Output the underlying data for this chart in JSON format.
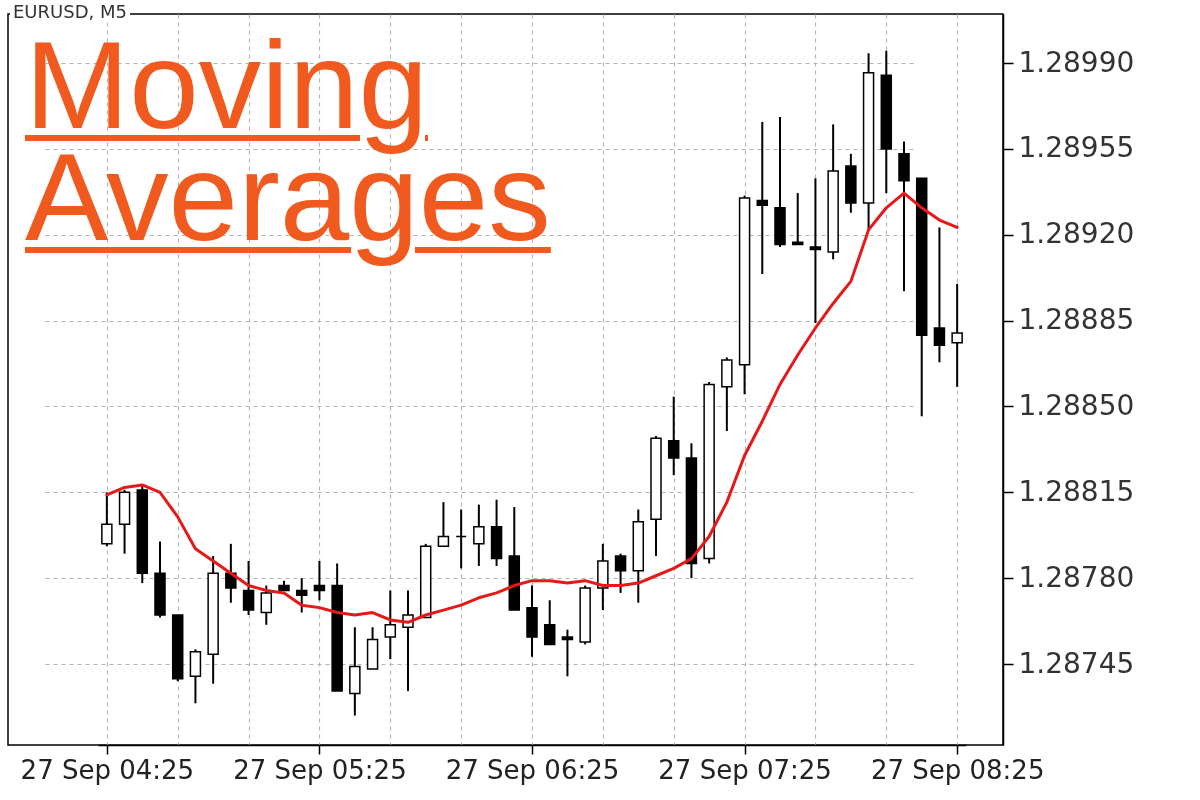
{
  "chart_data": {
    "type": "candlestick",
    "title": "Moving Averages",
    "subtitle": "EURUSD, M5",
    "categories": [
      "27 Sep 04:25",
      null,
      null,
      null,
      null,
      null,
      null,
      null,
      null,
      null,
      null,
      null,
      "27 Sep 05:25",
      null,
      null,
      null,
      null,
      null,
      null,
      null,
      null,
      null,
      null,
      null,
      "27 Sep 06:25",
      null,
      null,
      null,
      null,
      null,
      null,
      null,
      null,
      null,
      null,
      null,
      "27 Sep 07:25",
      null,
      null,
      null,
      null,
      null,
      null,
      null,
      null,
      null,
      null,
      null,
      "27 Sep 08:25"
    ],
    "ohlc": [
      [
        1.28794,
        1.28815,
        1.28793,
        1.28802
      ],
      [
        1.28802,
        1.28816,
        1.2879,
        1.28815
      ],
      [
        1.28816,
        1.28818,
        1.28778,
        1.28782
      ],
      [
        1.28782,
        1.28795,
        1.28764,
        1.28765
      ],
      [
        1.28765,
        1.28765,
        1.28738,
        1.28739
      ],
      [
        1.2874,
        1.28751,
        1.28729,
        1.2875
      ],
      [
        1.28749,
        1.28789,
        1.28737,
        1.28782
      ],
      [
        1.28782,
        1.28794,
        1.2877,
        1.28776
      ],
      [
        1.28775,
        1.28787,
        1.28765,
        1.28767
      ],
      [
        1.28766,
        1.28777,
        1.28761,
        1.28774
      ],
      [
        1.28777,
        1.28779,
        1.28775,
        1.28775
      ],
      [
        1.28775,
        1.2878,
        1.28766,
        1.28773
      ],
      [
        1.28777,
        1.28787,
        1.28771,
        1.28775
      ],
      [
        1.28777,
        1.28786,
        1.28734,
        1.28734
      ],
      [
        1.28733,
        1.2876,
        1.28724,
        1.28744
      ],
      [
        1.28743,
        1.2876,
        1.28743,
        1.28755
      ],
      [
        1.28756,
        1.28775,
        1.28747,
        1.28761
      ],
      [
        1.2876,
        1.28775,
        1.28734,
        1.28765
      ],
      [
        1.28764,
        1.28794,
        1.28764,
        1.28793
      ],
      [
        1.28793,
        1.28811,
        1.28793,
        1.28797
      ],
      [
        1.28797,
        1.28808,
        1.28784,
        1.28797
      ],
      [
        1.28794,
        1.2881,
        1.28785,
        1.28801
      ],
      [
        1.28801,
        1.28812,
        1.28785,
        1.28788
      ],
      [
        1.28789,
        1.28809,
        1.28767,
        1.28767
      ],
      [
        1.28768,
        1.28777,
        1.28748,
        1.28756
      ],
      [
        1.28761,
        1.28771,
        1.28753,
        1.28753
      ],
      [
        1.28756,
        1.28759,
        1.2874,
        1.28755
      ],
      [
        1.28754,
        1.28777,
        1.28753,
        1.28776
      ],
      [
        1.28776,
        1.28794,
        1.28767,
        1.28787
      ],
      [
        1.28789,
        1.2879,
        1.28774,
        1.28783
      ],
      [
        1.28783,
        1.28808,
        1.2877,
        1.28803
      ],
      [
        1.28804,
        1.28838,
        1.28789,
        1.28837
      ],
      [
        1.28836,
        1.28854,
        1.28822,
        1.28829
      ],
      [
        1.28829,
        1.28835,
        1.2878,
        1.28786
      ],
      [
        1.28788,
        1.2886,
        1.28786,
        1.28859
      ],
      [
        1.28858,
        1.2887,
        1.2884,
        1.28869
      ],
      [
        1.28867,
        1.28936,
        1.28855,
        1.28935
      ],
      [
        1.28934,
        1.28966,
        1.28904,
        1.28932
      ],
      [
        1.28931,
        1.28968,
        1.28915,
        1.28916
      ],
      [
        1.28917,
        1.28937,
        1.28916,
        1.28916
      ],
      [
        1.28915,
        1.28943,
        1.28884,
        1.28914
      ],
      [
        1.28913,
        1.28965,
        1.2891,
        1.28946
      ],
      [
        1.28948,
        1.28953,
        1.28929,
        1.28933
      ],
      [
        1.28933,
        1.28994,
        1.28922,
        1.28986
      ],
      [
        1.28985,
        1.28995,
        1.28937,
        1.28955
      ],
      [
        1.28953,
        1.28958,
        1.28897,
        1.28942
      ],
      [
        1.28943,
        1.28943,
        1.28846,
        1.28879
      ],
      [
        1.28882,
        1.28923,
        1.28868,
        1.28875
      ],
      [
        1.28876,
        1.289,
        1.28858,
        1.2888
      ]
    ],
    "series": [
      {
        "type": "line",
        "color": "#e61919",
        "values": [
          1.28814,
          1.28817,
          1.28818,
          1.28815,
          1.28805,
          1.28792,
          1.28787,
          1.28782,
          1.28777,
          1.28775,
          1.28774,
          1.28769,
          1.28768,
          1.28766,
          1.28765,
          1.28766,
          1.28763,
          1.28762,
          1.28765,
          1.28767,
          1.28769,
          1.28772,
          1.28774,
          1.28777,
          1.28779,
          1.28779,
          1.28778,
          1.28779,
          1.28777,
          1.28777,
          1.28778,
          1.28781,
          1.28784,
          1.28788,
          1.28797,
          1.28811,
          1.2883,
          1.28844,
          1.28859,
          1.28871,
          1.28882,
          1.28892,
          1.28901,
          1.28922,
          1.28931,
          1.28937,
          1.28931,
          1.28926,
          1.28923
        ]
      }
    ],
    "ylim": [
      1.28712,
      1.2901
    ],
    "yticks": [
      1.28745,
      {
        "value": 1.2878,
        "label": "1.28780"
      },
      1.28815,
      {
        "value": 1.2885,
        "label": "1.28850"
      },
      1.28885,
      {
        "value": 1.2892,
        "label": "1.28920"
      },
      1.28955,
      {
        "value": 1.2899,
        "label": "1.28990"
      }
    ],
    "grid": true
  }
}
